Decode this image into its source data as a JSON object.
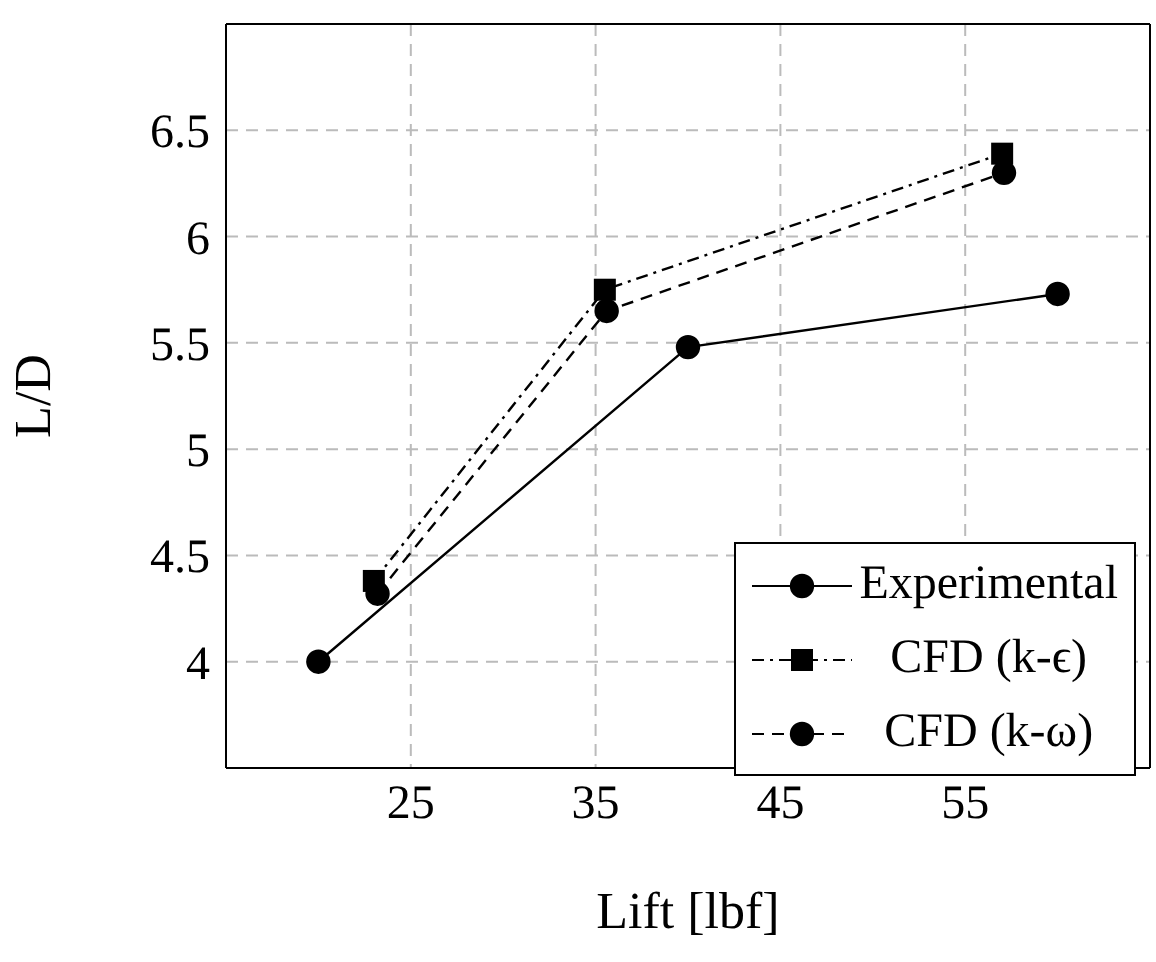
{
  "chart_data": {
    "type": "line",
    "xlabel": "Lift [lbf]",
    "ylabel": "L/D",
    "xlim": [
      15,
      65
    ],
    "xticks": [
      25,
      35,
      45,
      55
    ],
    "ylim": [
      3.5,
      7
    ],
    "yticks": [
      4,
      4.5,
      5,
      5.5,
      6,
      6.5
    ],
    "grid": true,
    "legend": "bottom right",
    "series": [
      {
        "name": "Experimental",
        "color": "#000000",
        "x": [
          20,
          40,
          60
        ],
        "values": [
          4.0,
          5.48,
          5.73
        ],
        "marker": "circle",
        "line_style": "solid"
      },
      {
        "name": "CFD (k-ϵ)",
        "color": "#000000",
        "x": [
          23,
          35.5,
          57
        ],
        "values": [
          4.38,
          5.75,
          6.39
        ],
        "marker": "square",
        "line_style": "dashdot"
      },
      {
        "name": "CFD (k-ω)",
        "color": "#000000",
        "x": [
          23.2,
          35.6,
          57.1
        ],
        "values": [
          4.32,
          5.65,
          6.3
        ],
        "marker": "circle",
        "line_style": "dashed"
      }
    ]
  }
}
